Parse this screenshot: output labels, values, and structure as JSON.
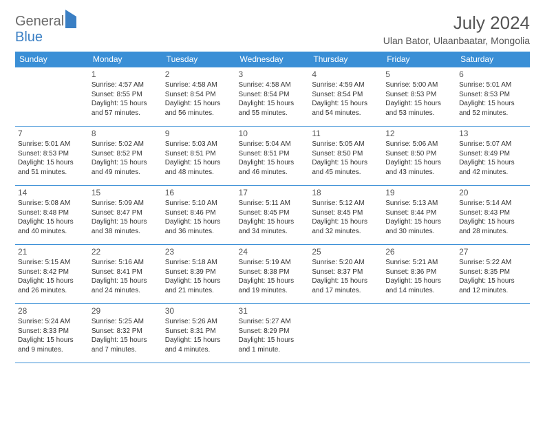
{
  "logo": {
    "part1": "General",
    "part2": "Blue"
  },
  "title": "July 2024",
  "location": "Ulan Bator, Ulaanbaatar, Mongolia",
  "colors": {
    "header_bg": "#3a8fd6",
    "header_text": "#ffffff",
    "border": "#3a8fd6",
    "logo_gray": "#6b6b6b",
    "logo_blue": "#3a7fc4",
    "text": "#333333"
  },
  "daysOfWeek": [
    "Sunday",
    "Monday",
    "Tuesday",
    "Wednesday",
    "Thursday",
    "Friday",
    "Saturday"
  ],
  "weeks": [
    [
      null,
      {
        "n": "1",
        "sr": "Sunrise: 4:57 AM",
        "ss": "Sunset: 8:55 PM",
        "d1": "Daylight: 15 hours",
        "d2": "and 57 minutes."
      },
      {
        "n": "2",
        "sr": "Sunrise: 4:58 AM",
        "ss": "Sunset: 8:54 PM",
        "d1": "Daylight: 15 hours",
        "d2": "and 56 minutes."
      },
      {
        "n": "3",
        "sr": "Sunrise: 4:58 AM",
        "ss": "Sunset: 8:54 PM",
        "d1": "Daylight: 15 hours",
        "d2": "and 55 minutes."
      },
      {
        "n": "4",
        "sr": "Sunrise: 4:59 AM",
        "ss": "Sunset: 8:54 PM",
        "d1": "Daylight: 15 hours",
        "d2": "and 54 minutes."
      },
      {
        "n": "5",
        "sr": "Sunrise: 5:00 AM",
        "ss": "Sunset: 8:53 PM",
        "d1": "Daylight: 15 hours",
        "d2": "and 53 minutes."
      },
      {
        "n": "6",
        "sr": "Sunrise: 5:01 AM",
        "ss": "Sunset: 8:53 PM",
        "d1": "Daylight: 15 hours",
        "d2": "and 52 minutes."
      }
    ],
    [
      {
        "n": "7",
        "sr": "Sunrise: 5:01 AM",
        "ss": "Sunset: 8:53 PM",
        "d1": "Daylight: 15 hours",
        "d2": "and 51 minutes."
      },
      {
        "n": "8",
        "sr": "Sunrise: 5:02 AM",
        "ss": "Sunset: 8:52 PM",
        "d1": "Daylight: 15 hours",
        "d2": "and 49 minutes."
      },
      {
        "n": "9",
        "sr": "Sunrise: 5:03 AM",
        "ss": "Sunset: 8:51 PM",
        "d1": "Daylight: 15 hours",
        "d2": "and 48 minutes."
      },
      {
        "n": "10",
        "sr": "Sunrise: 5:04 AM",
        "ss": "Sunset: 8:51 PM",
        "d1": "Daylight: 15 hours",
        "d2": "and 46 minutes."
      },
      {
        "n": "11",
        "sr": "Sunrise: 5:05 AM",
        "ss": "Sunset: 8:50 PM",
        "d1": "Daylight: 15 hours",
        "d2": "and 45 minutes."
      },
      {
        "n": "12",
        "sr": "Sunrise: 5:06 AM",
        "ss": "Sunset: 8:50 PM",
        "d1": "Daylight: 15 hours",
        "d2": "and 43 minutes."
      },
      {
        "n": "13",
        "sr": "Sunrise: 5:07 AM",
        "ss": "Sunset: 8:49 PM",
        "d1": "Daylight: 15 hours",
        "d2": "and 42 minutes."
      }
    ],
    [
      {
        "n": "14",
        "sr": "Sunrise: 5:08 AM",
        "ss": "Sunset: 8:48 PM",
        "d1": "Daylight: 15 hours",
        "d2": "and 40 minutes."
      },
      {
        "n": "15",
        "sr": "Sunrise: 5:09 AM",
        "ss": "Sunset: 8:47 PM",
        "d1": "Daylight: 15 hours",
        "d2": "and 38 minutes."
      },
      {
        "n": "16",
        "sr": "Sunrise: 5:10 AM",
        "ss": "Sunset: 8:46 PM",
        "d1": "Daylight: 15 hours",
        "d2": "and 36 minutes."
      },
      {
        "n": "17",
        "sr": "Sunrise: 5:11 AM",
        "ss": "Sunset: 8:45 PM",
        "d1": "Daylight: 15 hours",
        "d2": "and 34 minutes."
      },
      {
        "n": "18",
        "sr": "Sunrise: 5:12 AM",
        "ss": "Sunset: 8:45 PM",
        "d1": "Daylight: 15 hours",
        "d2": "and 32 minutes."
      },
      {
        "n": "19",
        "sr": "Sunrise: 5:13 AM",
        "ss": "Sunset: 8:44 PM",
        "d1": "Daylight: 15 hours",
        "d2": "and 30 minutes."
      },
      {
        "n": "20",
        "sr": "Sunrise: 5:14 AM",
        "ss": "Sunset: 8:43 PM",
        "d1": "Daylight: 15 hours",
        "d2": "and 28 minutes."
      }
    ],
    [
      {
        "n": "21",
        "sr": "Sunrise: 5:15 AM",
        "ss": "Sunset: 8:42 PM",
        "d1": "Daylight: 15 hours",
        "d2": "and 26 minutes."
      },
      {
        "n": "22",
        "sr": "Sunrise: 5:16 AM",
        "ss": "Sunset: 8:41 PM",
        "d1": "Daylight: 15 hours",
        "d2": "and 24 minutes."
      },
      {
        "n": "23",
        "sr": "Sunrise: 5:18 AM",
        "ss": "Sunset: 8:39 PM",
        "d1": "Daylight: 15 hours",
        "d2": "and 21 minutes."
      },
      {
        "n": "24",
        "sr": "Sunrise: 5:19 AM",
        "ss": "Sunset: 8:38 PM",
        "d1": "Daylight: 15 hours",
        "d2": "and 19 minutes."
      },
      {
        "n": "25",
        "sr": "Sunrise: 5:20 AM",
        "ss": "Sunset: 8:37 PM",
        "d1": "Daylight: 15 hours",
        "d2": "and 17 minutes."
      },
      {
        "n": "26",
        "sr": "Sunrise: 5:21 AM",
        "ss": "Sunset: 8:36 PM",
        "d1": "Daylight: 15 hours",
        "d2": "and 14 minutes."
      },
      {
        "n": "27",
        "sr": "Sunrise: 5:22 AM",
        "ss": "Sunset: 8:35 PM",
        "d1": "Daylight: 15 hours",
        "d2": "and 12 minutes."
      }
    ],
    [
      {
        "n": "28",
        "sr": "Sunrise: 5:24 AM",
        "ss": "Sunset: 8:33 PM",
        "d1": "Daylight: 15 hours",
        "d2": "and 9 minutes."
      },
      {
        "n": "29",
        "sr": "Sunrise: 5:25 AM",
        "ss": "Sunset: 8:32 PM",
        "d1": "Daylight: 15 hours",
        "d2": "and 7 minutes."
      },
      {
        "n": "30",
        "sr": "Sunrise: 5:26 AM",
        "ss": "Sunset: 8:31 PM",
        "d1": "Daylight: 15 hours",
        "d2": "and 4 minutes."
      },
      {
        "n": "31",
        "sr": "Sunrise: 5:27 AM",
        "ss": "Sunset: 8:29 PM",
        "d1": "Daylight: 15 hours",
        "d2": "and 1 minute."
      },
      null,
      null,
      null
    ]
  ]
}
